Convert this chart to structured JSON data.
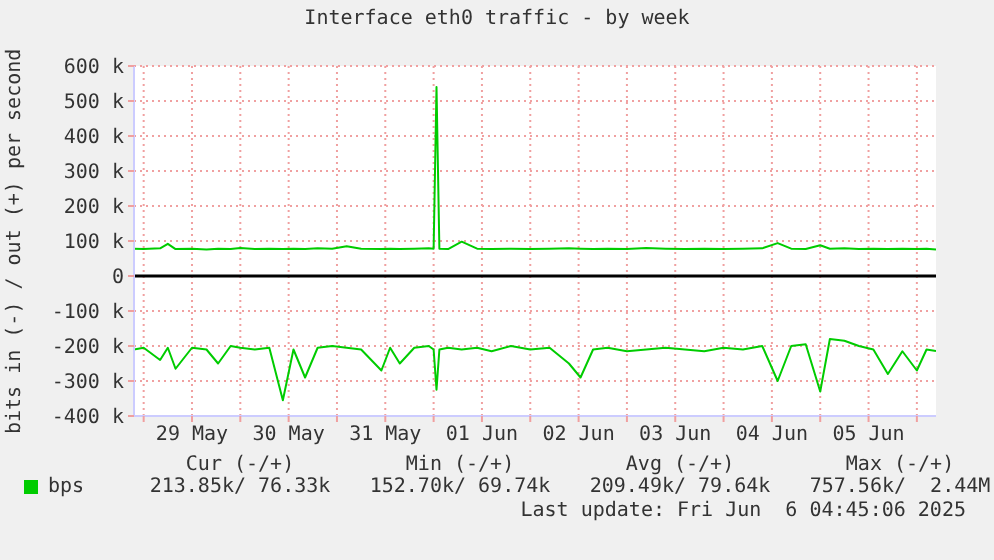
{
  "chart_data": {
    "type": "line",
    "title": "Interface eth0 traffic - by week",
    "ylabel": "bits in (-) / out (+) per second",
    "x": [
      "2025-05-28T21:36",
      "2025-05-29T00:00",
      "2025-05-29T04:05",
      "2025-05-29T06:00",
      "2025-05-29T07:55",
      "2025-05-29T12:00",
      "2025-05-29T15:36",
      "2025-05-29T18:29",
      "2025-05-29T21:36",
      "2025-05-30T00:00",
      "2025-05-30T03:36",
      "2025-05-30T07:12",
      "2025-05-30T10:34",
      "2025-05-30T13:12",
      "2025-05-30T16:05",
      "2025-05-30T19:12",
      "2025-05-30T22:48",
      "2025-05-31T02:24",
      "2025-05-31T06:00",
      "2025-05-31T11:02",
      "2025-05-31T13:12",
      "2025-05-31T15:36",
      "2025-05-31T19:12",
      "2025-05-31T22:48",
      "2025-06-01T00:00",
      "2025-06-01T00:43",
      "2025-06-01T01:26",
      "2025-06-01T03:36",
      "2025-06-01T06:58",
      "2025-06-01T10:48",
      "2025-06-01T14:24",
      "2025-06-01T19:12",
      "2025-06-02T00:00",
      "2025-06-02T04:48",
      "2025-06-02T09:36",
      "2025-06-02T12:29",
      "2025-06-02T15:36",
      "2025-06-02T19:12",
      "2025-06-03T00:00",
      "2025-06-03T04:48",
      "2025-06-03T09:36",
      "2025-06-03T14:24",
      "2025-06-03T19:12",
      "2025-06-04T00:00",
      "2025-06-04T04:48",
      "2025-06-04T09:36",
      "2025-06-04T13:26",
      "2025-06-04T16:48",
      "2025-06-04T20:24",
      "2025-06-05T00:00",
      "2025-06-05T02:24",
      "2025-06-05T06:00",
      "2025-06-05T09:36",
      "2025-06-05T13:12",
      "2025-06-05T16:48",
      "2025-06-05T20:24",
      "2025-06-06T00:00",
      "2025-06-06T02:24",
      "2025-06-06T04:45"
    ],
    "series": [
      {
        "name": "bps",
        "color": "#00cc00",
        "values": [
          -210000,
          -205000,
          -240000,
          -205000,
          -265000,
          -205000,
          -210000,
          -250000,
          -200000,
          -205000,
          -210000,
          -205000,
          -355000,
          -210000,
          -290000,
          -205000,
          -200000,
          -205000,
          -210000,
          -270000,
          -205000,
          -250000,
          -205000,
          -200000,
          -210000,
          -325000,
          -210000,
          -205000,
          -210000,
          -205000,
          -215000,
          -200000,
          -210000,
          -205000,
          -250000,
          -290000,
          -210000,
          -205000,
          -215000,
          -210000,
          -205000,
          -210000,
          -215000,
          -205000,
          -210000,
          -200000,
          -300000,
          -200000,
          -195000,
          -330000,
          -180000,
          -185000,
          -200000,
          -210000,
          -280000,
          -215000,
          -270000,
          -210000,
          -214000
        ]
      },
      {
        "color": "#00cc00",
        "values": [
          78000,
          77000,
          79000,
          92000,
          77000,
          78000,
          76000,
          78000,
          77000,
          80000,
          77000,
          78000,
          77000,
          78000,
          77000,
          79000,
          78000,
          85000,
          78000,
          77000,
          78000,
          77000,
          78000,
          79000,
          78000,
          540000,
          78000,
          77000,
          98000,
          78000,
          77000,
          78000,
          77000,
          78000,
          79000,
          78000,
          77000,
          78000,
          77000,
          80000,
          78000,
          77000,
          78000,
          77000,
          78000,
          79000,
          94000,
          78000,
          77000,
          88000,
          78000,
          79000,
          77000,
          78000,
          77000,
          78000,
          77000,
          78000,
          76000
        ]
      }
    ],
    "xlim": [
      "2025-05-28T21:36",
      "2025-06-06T04:45"
    ],
    "xticks": [
      {
        "value": "2025-05-29T00:00",
        "label": null
      },
      {
        "value": "2025-05-29T12:00",
        "label": "29 May"
      },
      {
        "value": "2025-05-30T00:00",
        "label": null
      },
      {
        "value": "2025-05-30T12:00",
        "label": "30 May"
      },
      {
        "value": "2025-05-31T00:00",
        "label": null
      },
      {
        "value": "2025-05-31T12:00",
        "label": "31 May"
      },
      {
        "value": "2025-06-01T00:00",
        "label": null
      },
      {
        "value": "2025-06-01T12:00",
        "label": "01 Jun"
      },
      {
        "value": "2025-06-02T00:00",
        "label": null
      },
      {
        "value": "2025-06-02T12:00",
        "label": "02 Jun"
      },
      {
        "value": "2025-06-03T00:00",
        "label": null
      },
      {
        "value": "2025-06-03T12:00",
        "label": "03 Jun"
      },
      {
        "value": "2025-06-04T00:00",
        "label": null
      },
      {
        "value": "2025-06-04T12:00",
        "label": "04 Jun"
      },
      {
        "value": "2025-06-05T00:00",
        "label": null
      },
      {
        "value": "2025-06-05T12:00",
        "label": "05 Jun"
      },
      {
        "value": "2025-06-06T00:00",
        "label": null
      }
    ],
    "ylim": [
      -400000,
      600000
    ],
    "yticks": [
      {
        "value": -400000,
        "label": "-400 k"
      },
      {
        "value": -300000,
        "label": "-300 k"
      },
      {
        "value": -200000,
        "label": "-200 k"
      },
      {
        "value": -100000,
        "label": "-100 k"
      },
      0,
      {
        "value": 100000,
        "label": "100 k"
      },
      {
        "value": 200000,
        "label": "200 k"
      },
      {
        "value": 300000,
        "label": "300 k"
      },
      {
        "value": 400000,
        "label": "400 k"
      },
      {
        "value": 500000,
        "label": "500 k"
      },
      {
        "value": 600000,
        "label": "600 k"
      }
    ],
    "grid": true,
    "legend": "bottom left",
    "marker": "none",
    "line_style": "solid",
    "ref_lines": [
      {
        "axis": "y",
        "value": 0,
        "color": "#000000"
      }
    ],
    "annotations": [
      "Cur (-/+)",
      "Min (-/+)",
      "Avg (-/+)",
      "Max (-/+)",
      "213.85k/ 76.33k",
      "152.70k/ 69.74k",
      "209.49k/ 79.64k",
      "757.56k/  2.44M",
      "Last update: Fri Jun  6 04:45:06 2025"
    ]
  }
}
